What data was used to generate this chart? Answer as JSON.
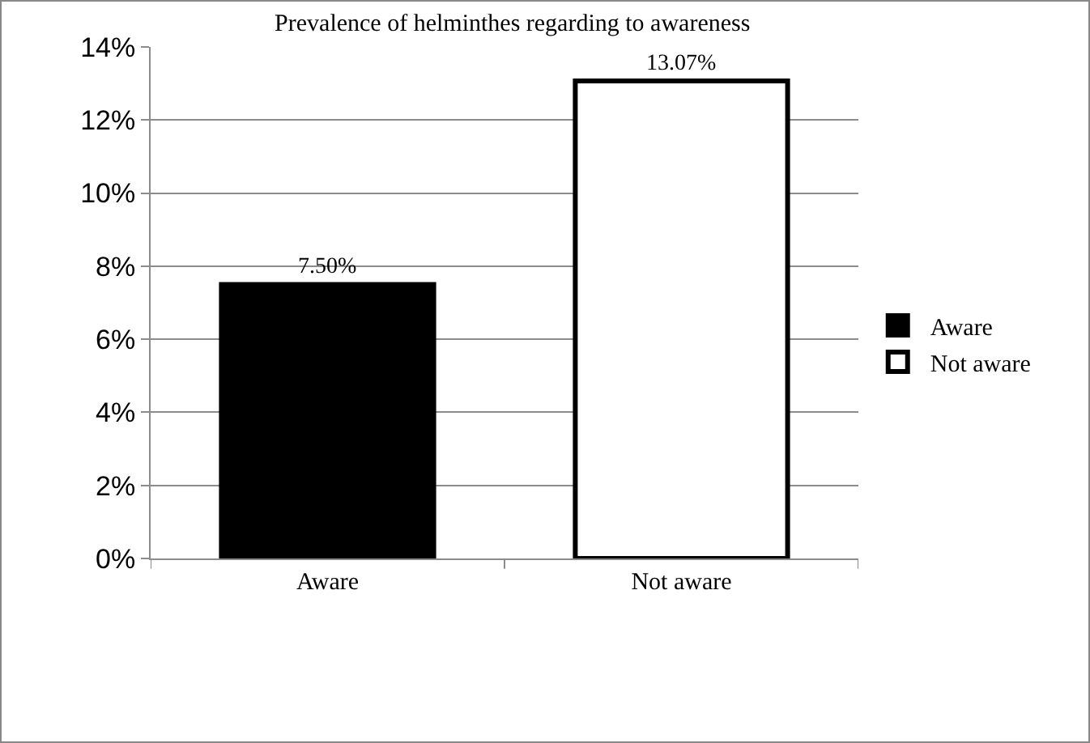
{
  "chart_data": {
    "type": "bar",
    "title": "Prevalence of helminthes regarding to awareness",
    "categories": [
      "Aware",
      "Not aware"
    ],
    "series": [
      {
        "name": "Aware",
        "color": "#000000",
        "values": [
          7.5,
          null
        ],
        "value_labels": [
          "7.50%",
          null
        ]
      },
      {
        "name": "Not aware",
        "color": "#ffffff",
        "values": [
          null,
          13.07
        ],
        "value_labels": [
          null,
          "13.07%"
        ]
      }
    ],
    "ylim": [
      0,
      14
    ],
    "yticks": [
      {
        "value": 0,
        "label": "0%"
      },
      {
        "value": 2,
        "label": "2%"
      },
      {
        "value": 4,
        "label": "4%"
      },
      {
        "value": 6,
        "label": "6%"
      },
      {
        "value": 8,
        "label": "8%"
      },
      {
        "value": 10,
        "label": "10%"
      },
      {
        "value": 12,
        "label": "12%"
      },
      {
        "value": 14,
        "label": "14%"
      }
    ],
    "grid": "y",
    "legend": "right"
  }
}
